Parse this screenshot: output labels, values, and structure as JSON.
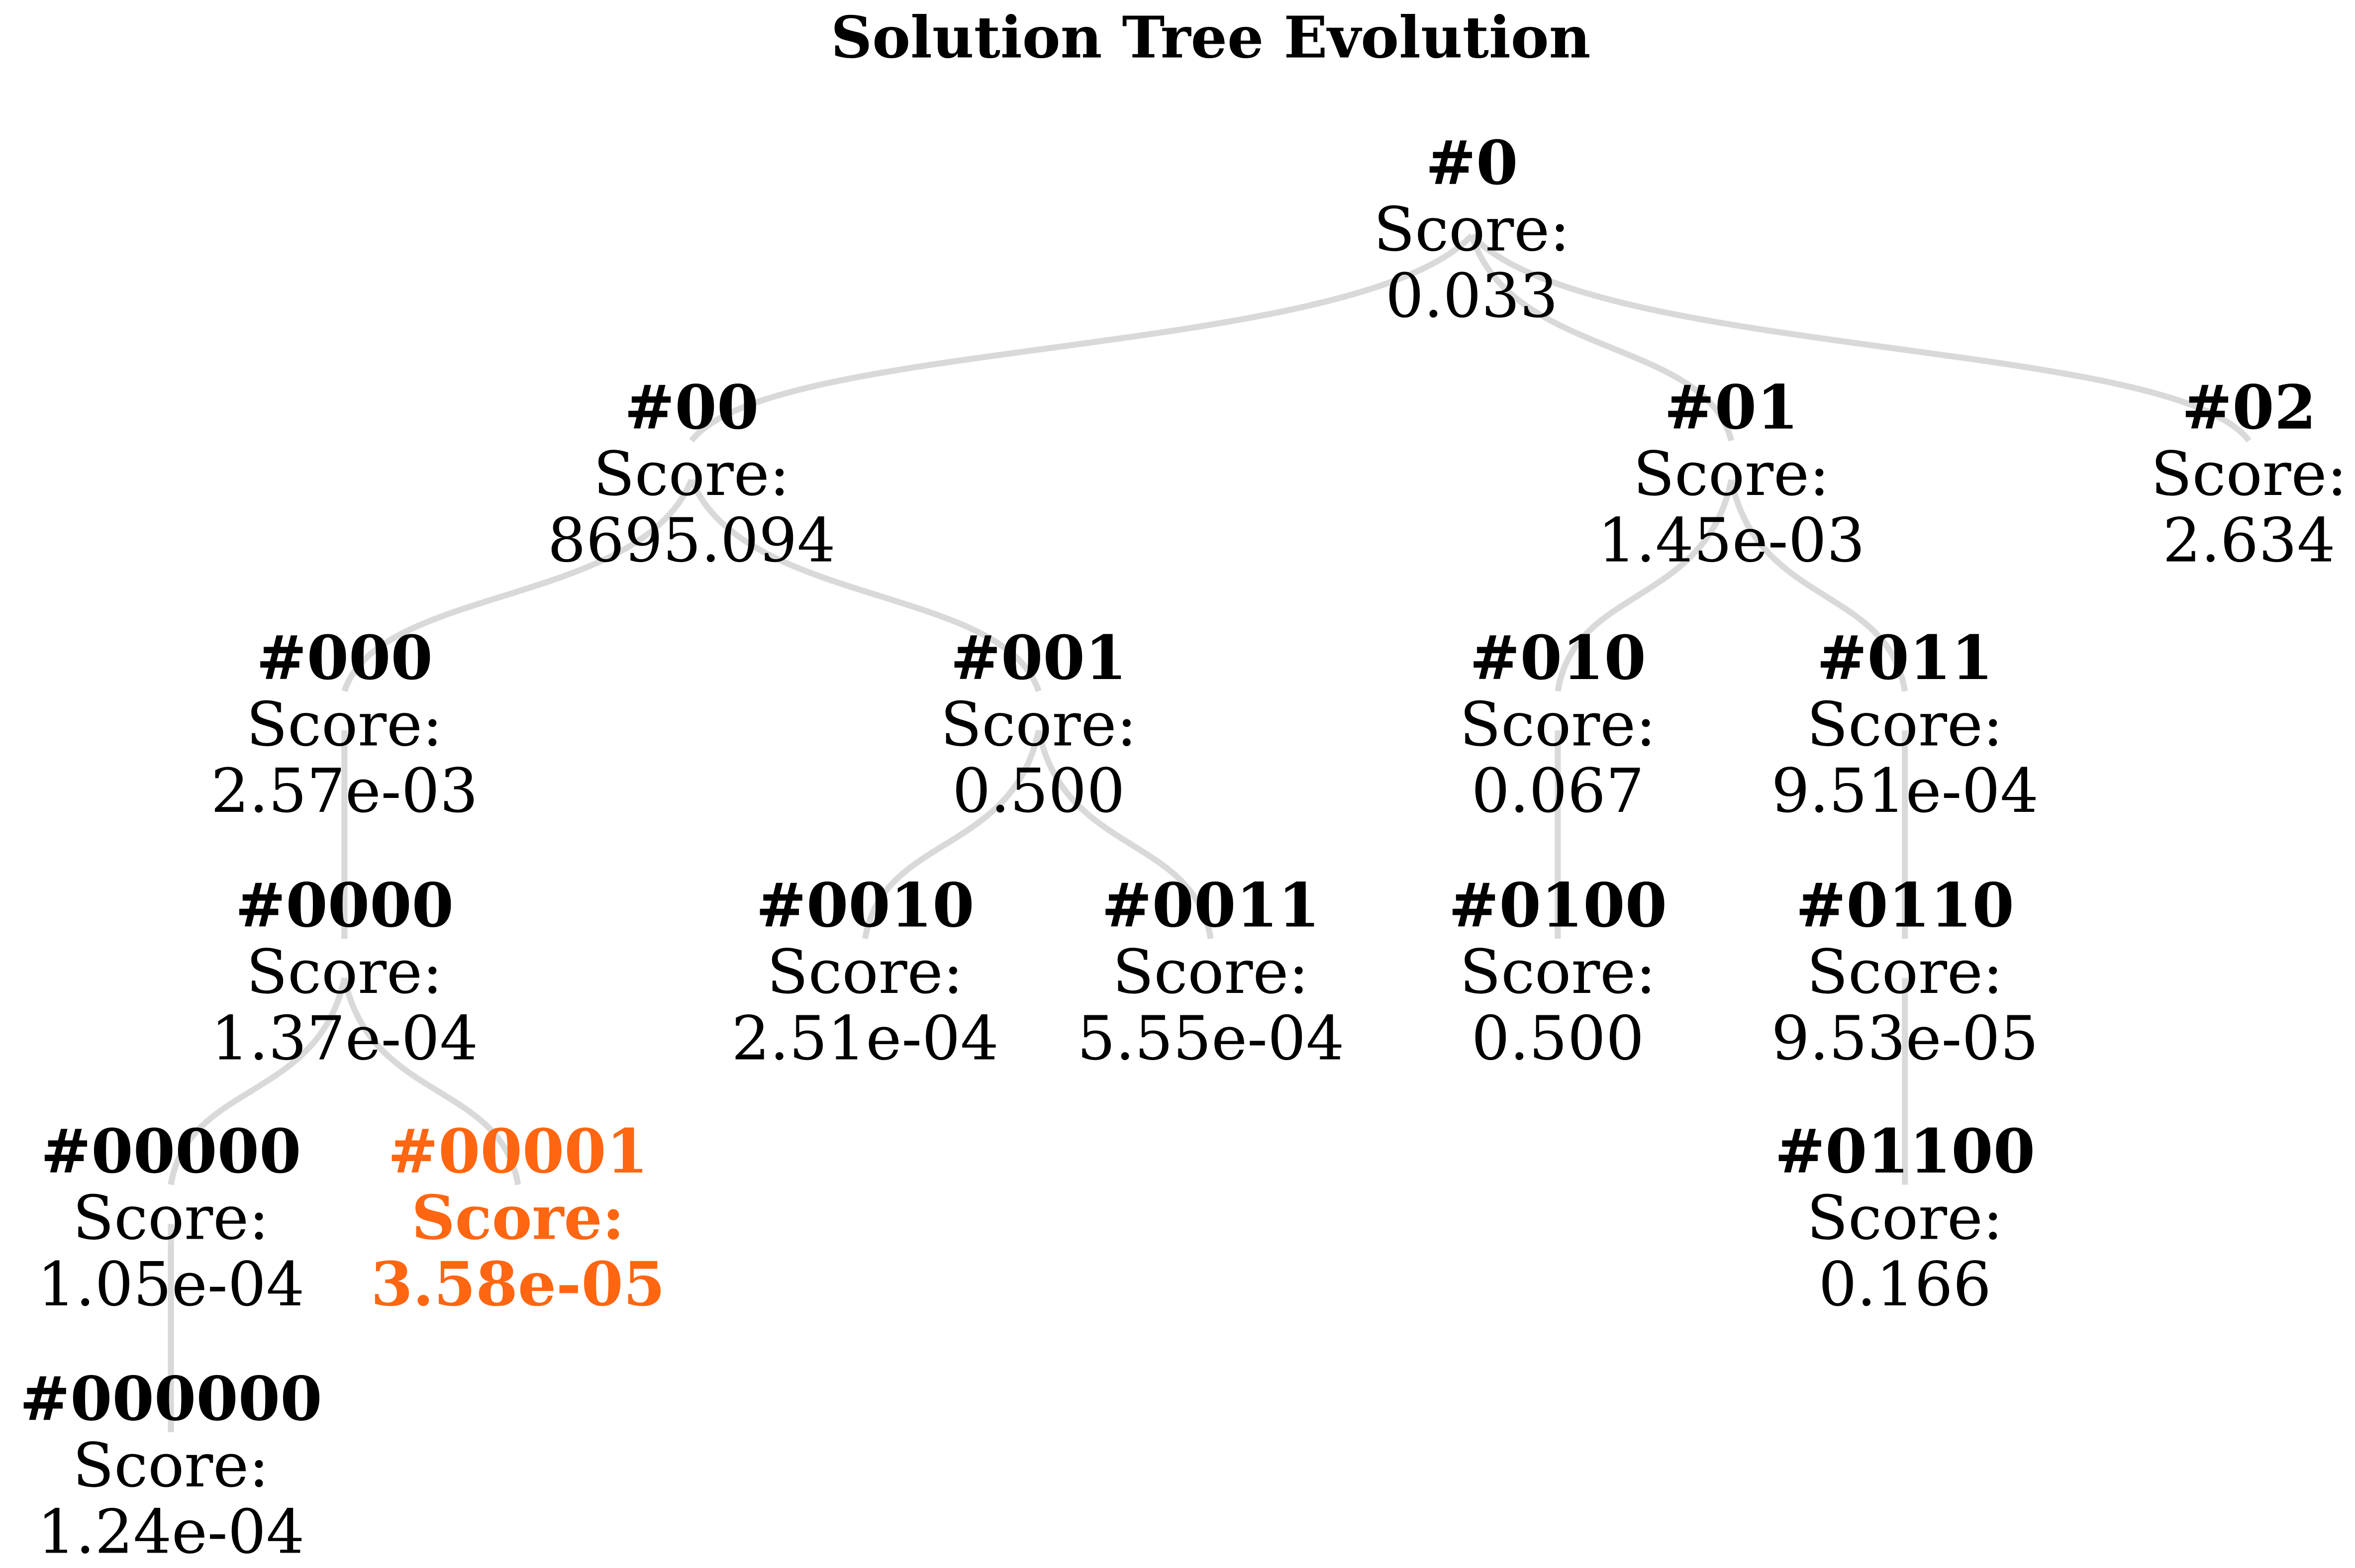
{
  "title": "Solution Tree Evolution",
  "root": {
    "label": "#0",
    "score_label": "Score:",
    "score": "0.033",
    "children": [
      {
        "label": "#00",
        "score_label": "Score:",
        "score": "8695.094",
        "children": [
          {
            "label": "#000",
            "score_label": "Score:",
            "score": "2.57e-03",
            "children": [
              {
                "label": "#0000",
                "score_label": "Score:",
                "score": "1.37e-04",
                "children": [
                  {
                    "label": "#00000",
                    "score_label": "Score:",
                    "score": "1.05e-04",
                    "children": [
                      {
                        "label": "#000000",
                        "score_label": "Score:",
                        "score": "1.24e-04",
                        "children": []
                      }
                    ]
                  },
                  {
                    "label": "#00001",
                    "score_label": "Score:",
                    "score": "3.58e-05",
                    "highlighted": true,
                    "children": []
                  }
                ]
              }
            ]
          },
          {
            "label": "#001",
            "score_label": "Score:",
            "score": "0.500",
            "children": [
              {
                "label": "#0010",
                "score_label": "Score:",
                "score": "2.51e-04",
                "children": []
              },
              {
                "label": "#0011",
                "score_label": "Score:",
                "score": "5.55e-04",
                "children": []
              }
            ]
          }
        ]
      },
      {
        "label": "#01",
        "score_label": "Score:",
        "score": "1.45e-03",
        "children": [
          {
            "label": "#010",
            "score_label": "Score:",
            "score": "0.067",
            "children": [
              {
                "label": "#0100",
                "score_label": "Score:",
                "score": "0.500",
                "children": []
              }
            ]
          },
          {
            "label": "#011",
            "score_label": "Score:",
            "score": "9.51e-04",
            "children": [
              {
                "label": "#0110",
                "score_label": "Score:",
                "score": "9.53e-05",
                "children": [
                  {
                    "label": "#01100",
                    "score_label": "Score:",
                    "score": "0.166",
                    "children": []
                  }
                ]
              }
            ]
          }
        ]
      },
      {
        "label": "#02",
        "score_label": "Score:",
        "score": "2.634",
        "children": []
      }
    ]
  }
}
